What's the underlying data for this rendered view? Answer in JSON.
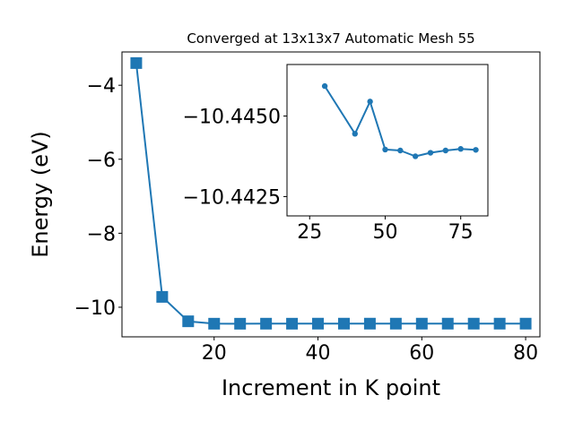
{
  "chart_data": [
    {
      "type": "line",
      "title": "Converged at 13x13x7 Automatic Mesh 55",
      "xlabel": "Increment in K point",
      "ylabel": "Energy (eV)",
      "xlim": [
        2.25,
        82.75
      ],
      "ylim": [
        -10.8,
        -3.1
      ],
      "xticks": [
        20,
        40,
        60,
        80
      ],
      "yticks": [
        -10,
        -8,
        -6,
        -4
      ],
      "xtick_labels": [
        "20",
        "40",
        "60",
        "80"
      ],
      "ytick_labels": [
        "−10",
        "−8",
        "−6",
        "−4"
      ],
      "marker": "square",
      "grid": false,
      "x": [
        5,
        10,
        15,
        20,
        25,
        30,
        35,
        40,
        45,
        50,
        55,
        60,
        65,
        70,
        75,
        80
      ],
      "y": [
        -3.4,
        -9.72,
        -10.38,
        -10.445,
        -10.4455,
        -10.4443,
        -10.4448,
        -10.4435,
        -10.4435,
        -10.4434,
        -10.4433,
        -10.4434,
        -10.4434,
        -10.4435,
        -10.4434,
        -10.4435
      ]
    },
    {
      "type": "line",
      "title": "",
      "xlabel": "",
      "ylabel": "",
      "xlim": [
        17.5,
        84
      ],
      "ylim": [
        -10.4419,
        -10.4466
      ],
      "xticks": [
        25,
        50,
        75
      ],
      "yticks": [
        -10.445,
        -10.4425
      ],
      "xtick_labels": [
        "25",
        "50",
        "75"
      ],
      "ytick_labels": [
        "−10.4450",
        "−10.4425"
      ],
      "marker": "circle",
      "grid": false,
      "x": [
        30,
        40,
        45,
        50,
        55,
        60,
        65,
        70,
        75,
        80
      ],
      "y": [
        -10.44593,
        -10.44445,
        -10.44545,
        -10.44396,
        -10.44393,
        -10.44375,
        -10.44386,
        -10.44393,
        -10.44398,
        -10.44395
      ]
    }
  ],
  "colors": {
    "series": "#1f77b4",
    "axes": "#000000",
    "background": "#ffffff"
  }
}
